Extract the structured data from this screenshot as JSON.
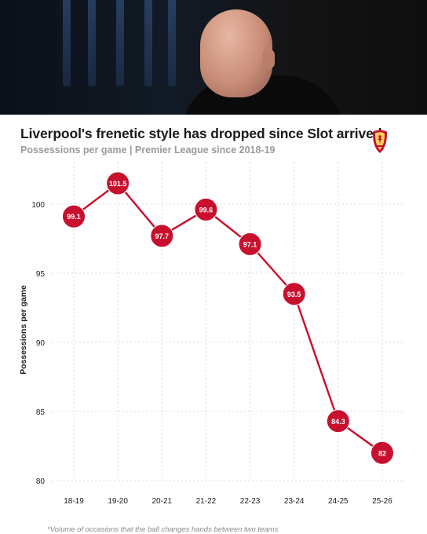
{
  "header": {
    "title": "Liverpool's frenetic style has dropped since Slot arrived",
    "subtitle": "Possessions per game | Premier League since 2018-19",
    "crest_icon": "liverpool-crest-icon",
    "photo_icon": "coach-photo"
  },
  "chart_data": {
    "type": "line",
    "title": "Liverpool's frenetic style has dropped since Slot arrived",
    "subtitle": "Possessions per game | Premier League since 2018-19",
    "xlabel": "",
    "ylabel": "Possessions per game",
    "categories": [
      "18-19",
      "19-20",
      "20-21",
      "21-22",
      "22-23",
      "23-24",
      "24-25",
      "25-26"
    ],
    "series": [
      {
        "values": [
          99.1,
          101.5,
          97.7,
          99.6,
          97.1,
          93.5,
          84.3,
          82
        ],
        "labels": [
          "99.1",
          "101.5",
          "97.7",
          "99.6",
          "97.1",
          "93.5",
          "84.3",
          "82"
        ]
      }
    ],
    "ylim": [
      80,
      103
    ],
    "yticks": [
      80,
      85,
      90,
      95,
      100
    ],
    "grid": true,
    "colors": {
      "line": "#c8102e",
      "marker": "#c8102e",
      "marker_text": "#ffffff",
      "grid": "#d9d9d9",
      "text": "#1a1a1a"
    }
  },
  "footnote": "*Volume of occasions that the ball changes hands between two teams"
}
